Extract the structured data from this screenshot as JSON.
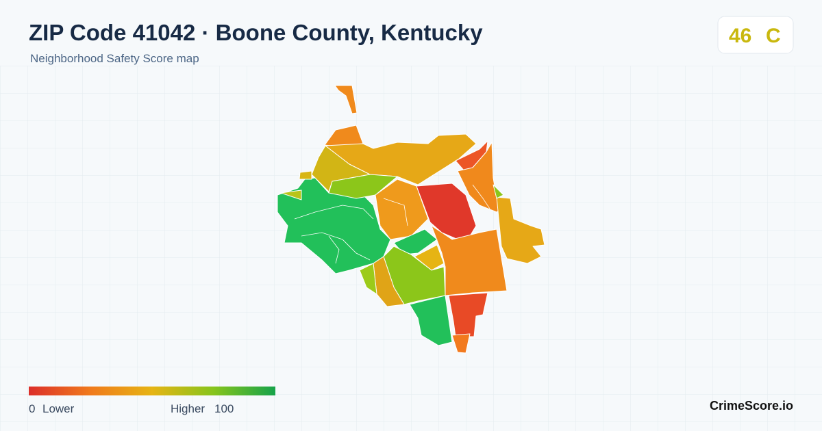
{
  "header": {
    "title": "ZIP Code 41042 · Boone County, Kentucky",
    "subtitle": "Neighborhood Safety Score map"
  },
  "score": {
    "value": 46,
    "grade": "C"
  },
  "legend": {
    "min": 0,
    "min_label": "Lower",
    "max_label": "Higher",
    "max": 100
  },
  "brand": "CrimeScore.io"
}
